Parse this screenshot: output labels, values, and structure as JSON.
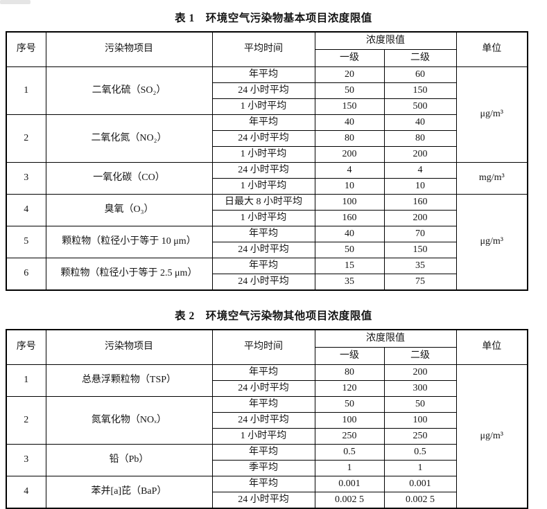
{
  "table1": {
    "title": "表 1　环境空气污染物基本项目浓度限值",
    "header": {
      "no": "序号",
      "pollutant": "污染物项目",
      "avg_time": "平均时间",
      "limit": "浓度限值",
      "level1": "一级",
      "level2": "二级",
      "unit": "单位"
    },
    "rows": [
      {
        "no": "1",
        "pollutant": "二氧化硫（SO₂）",
        "time": "年平均",
        "l1": "20",
        "l2": "60",
        "unit": "μg/m³"
      },
      {
        "time": "24 小时平均",
        "l1": "50",
        "l2": "150"
      },
      {
        "time": "1 小时平均",
        "l1": "150",
        "l2": "500"
      },
      {
        "no": "2",
        "pollutant": "二氧化氮（NO₂）",
        "time": "年平均",
        "l1": "40",
        "l2": "40"
      },
      {
        "time": "24 小时平均",
        "l1": "80",
        "l2": "80"
      },
      {
        "time": "1 小时平均",
        "l1": "200",
        "l2": "200"
      },
      {
        "no": "3",
        "pollutant": "一氧化碳（CO）",
        "time": "24 小时平均",
        "l1": "4",
        "l2": "4",
        "unit": "mg/m³"
      },
      {
        "time": "1 小时平均",
        "l1": "10",
        "l2": "10"
      },
      {
        "no": "4",
        "pollutant": "臭氧（O₃）",
        "time": "日最大 8 小时平均",
        "l1": "100",
        "l2": "160",
        "unit": "μg/m³"
      },
      {
        "time": "1 小时平均",
        "l1": "160",
        "l2": "200"
      },
      {
        "no": "5",
        "pollutant": "颗粒物（粒径小于等于 10 μm）",
        "time": "年平均",
        "l1": "40",
        "l2": "70"
      },
      {
        "time": "24 小时平均",
        "l1": "50",
        "l2": "150"
      },
      {
        "no": "6",
        "pollutant": "颗粒物（粒径小于等于 2.5 μm）",
        "time": "年平均",
        "l1": "15",
        "l2": "35"
      },
      {
        "time": "24 小时平均",
        "l1": "35",
        "l2": "75"
      }
    ]
  },
  "table2": {
    "title": "表 2　环境空气污染物其他项目浓度限值",
    "header": {
      "no": "序号",
      "pollutant": "污染物项目",
      "avg_time": "平均时间",
      "limit": "浓度限值",
      "level1": "一级",
      "level2": "二级",
      "unit": "单位"
    },
    "rows": [
      {
        "no": "1",
        "pollutant": "总悬浮颗粒物（TSP）",
        "time": "年平均",
        "l1": "80",
        "l2": "200",
        "unit": "μg/m³"
      },
      {
        "time": "24 小时平均",
        "l1": "120",
        "l2": "300"
      },
      {
        "no": "2",
        "pollutant": "氮氧化物（NOₓ）",
        "time": "年平均",
        "l1": "50",
        "l2": "50"
      },
      {
        "time": "24 小时平均",
        "l1": "100",
        "l2": "100"
      },
      {
        "time": "1 小时平均",
        "l1": "250",
        "l2": "250"
      },
      {
        "no": "3",
        "pollutant": "铅（Pb）",
        "time": "年平均",
        "l1": "0.5",
        "l2": "0.5"
      },
      {
        "time": "季平均",
        "l1": "1",
        "l2": "1"
      },
      {
        "no": "4",
        "pollutant": "苯并[a]芘（BaP）",
        "time": "年平均",
        "l1": "0.001",
        "l2": "0.001"
      },
      {
        "time": "24 小时平均",
        "l1": "0.002 5",
        "l2": "0.002 5"
      }
    ]
  }
}
